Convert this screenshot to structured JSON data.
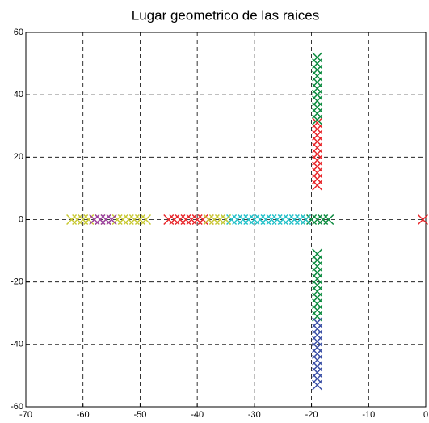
{
  "chart_data": {
    "type": "scatter",
    "title": "Lugar geometrico de las raices",
    "xlim": [
      -70,
      0
    ],
    "ylim": [
      -60,
      60
    ],
    "xticks": [
      -70,
      -60,
      -50,
      -40,
      -30,
      -20,
      -10,
      0
    ],
    "yticks": [
      -60,
      -40,
      -20,
      0,
      20,
      40,
      60
    ],
    "grid": true,
    "series": [
      {
        "color": "#e8262a",
        "x": [
          -45,
          -44,
          -43,
          -42,
          -41,
          -40,
          -39,
          -38,
          -19,
          -19,
          -19,
          -19,
          -19,
          -19,
          -19,
          -19,
          -19,
          -19,
          -19,
          -0.5
        ],
        "values": [
          0,
          0,
          0,
          0,
          0,
          0,
          0,
          0,
          11,
          13,
          15,
          17,
          19,
          21,
          23,
          25,
          27,
          29,
          31,
          0
        ]
      },
      {
        "color": "#0b8a3e",
        "x": [
          -19,
          -19,
          -19,
          -19,
          -19,
          -19,
          -19,
          -19,
          -19,
          -19,
          -19,
          -19,
          -19,
          -19,
          -19,
          -19,
          -19,
          -19,
          -19,
          -19,
          -19,
          -19,
          -21,
          -20,
          -19,
          -18,
          -17
        ],
        "values": [
          32,
          34,
          36,
          38,
          40,
          42,
          44,
          46,
          48,
          50,
          52,
          -11,
          -13,
          -15,
          -17,
          -19,
          -21,
          -23,
          -25,
          -27,
          -29,
          -31,
          0,
          0,
          0,
          0,
          0
        ]
      },
      {
        "color": "#3a4fa5",
        "x": [
          -19,
          -19,
          -19,
          -19,
          -19,
          -19,
          -19,
          -19,
          -19,
          -19,
          -19
        ],
        "values": [
          -33,
          -35,
          -37,
          -39,
          -41,
          -43,
          -45,
          -47,
          -49,
          -51,
          -53
        ]
      },
      {
        "color": "#22c0c8",
        "x": [
          -35,
          -34,
          -33,
          -32,
          -31,
          -30,
          -29,
          -28,
          -27,
          -26,
          -25,
          -24,
          -23,
          -22,
          -21
        ],
        "values": [
          0,
          0,
          0,
          0,
          0,
          0,
          0,
          0,
          0,
          0,
          0,
          0,
          0,
          0,
          0
        ]
      },
      {
        "color": "#c8c832",
        "x": [
          -62,
          -61,
          -60,
          -59,
          -58,
          -57,
          -56,
          -55,
          -54,
          -53,
          -52,
          -51,
          -50,
          -49,
          -38,
          -37,
          -36,
          -35
        ],
        "values": [
          0,
          0,
          0,
          0,
          0,
          0,
          0,
          0,
          0,
          0,
          0,
          0,
          0,
          0,
          0,
          0,
          0,
          0
        ]
      },
      {
        "color": "#9b3fa8",
        "x": [
          -58,
          -57,
          -56,
          -55
        ],
        "values": [
          0,
          0,
          0,
          0
        ]
      }
    ]
  }
}
